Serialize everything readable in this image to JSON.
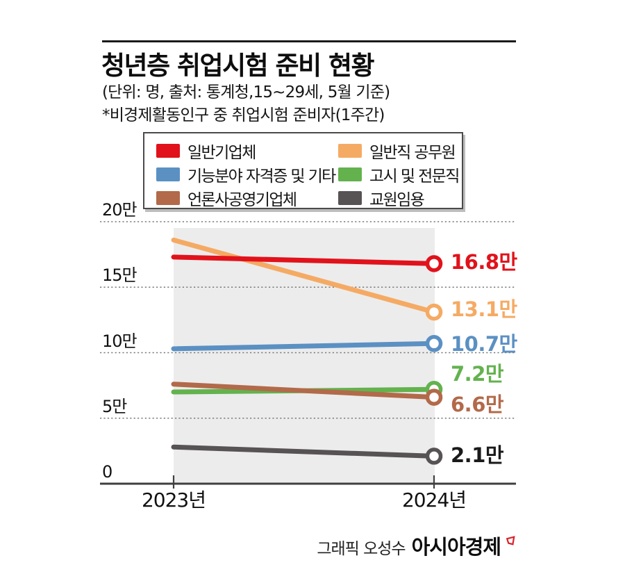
{
  "header": {
    "title": "청년층 취업시험 준비 현황",
    "subtitle": "(단위: 명, 출처: 통계청,15~29세, 5월 기준)",
    "note": "*비경제활동인구 중 취업시험 준비자(1주간)"
  },
  "chart_data": {
    "type": "line",
    "x_categories": [
      "2023년",
      "2024년"
    ],
    "ylim": [
      0,
      20
    ],
    "yticks": [
      {
        "value": 0,
        "label": "0"
      },
      {
        "value": 5,
        "label": "5만"
      },
      {
        "value": 10,
        "label": "10만"
      },
      {
        "value": 15,
        "label": "15만"
      },
      {
        "value": 20,
        "label": "20만"
      }
    ],
    "grid": "dashed-horizontal",
    "legend_position": "top",
    "highlight_band": {
      "from": "2023년",
      "to": "2024년",
      "color": "#ececec"
    },
    "series": [
      {
        "name": "일반기업체",
        "color": "#e1121b",
        "values": [
          17.3,
          16.8
        ],
        "end_label": "16.8만",
        "label_color": "#e1121b"
      },
      {
        "name": "일반직 공무원",
        "color": "#f5aa64",
        "values": [
          18.6,
          13.1
        ],
        "end_label": "13.1만",
        "label_color": "#f5aa64"
      },
      {
        "name": "기능분야 자격증 및 기타",
        "color": "#5b90c3",
        "values": [
          10.3,
          10.7
        ],
        "end_label": "10.7만",
        "label_color": "#5b90c3"
      },
      {
        "name": "고시 및 전문직",
        "color": "#63b24e",
        "values": [
          7.0,
          7.2
        ],
        "end_label": "7.2만",
        "label_color": "#63b24e"
      },
      {
        "name": "언론사공영기업체",
        "color": "#b26a4a",
        "values": [
          7.6,
          6.6
        ],
        "end_label": "6.6만",
        "label_color": "#b26a4a"
      },
      {
        "name": "교원임용",
        "color": "#575354",
        "values": [
          2.8,
          2.1
        ],
        "end_label": "2.1만",
        "label_color": "#1a1a1a"
      }
    ]
  },
  "footer": {
    "credit": "그래픽 오성수",
    "brand": "아시아경제"
  }
}
